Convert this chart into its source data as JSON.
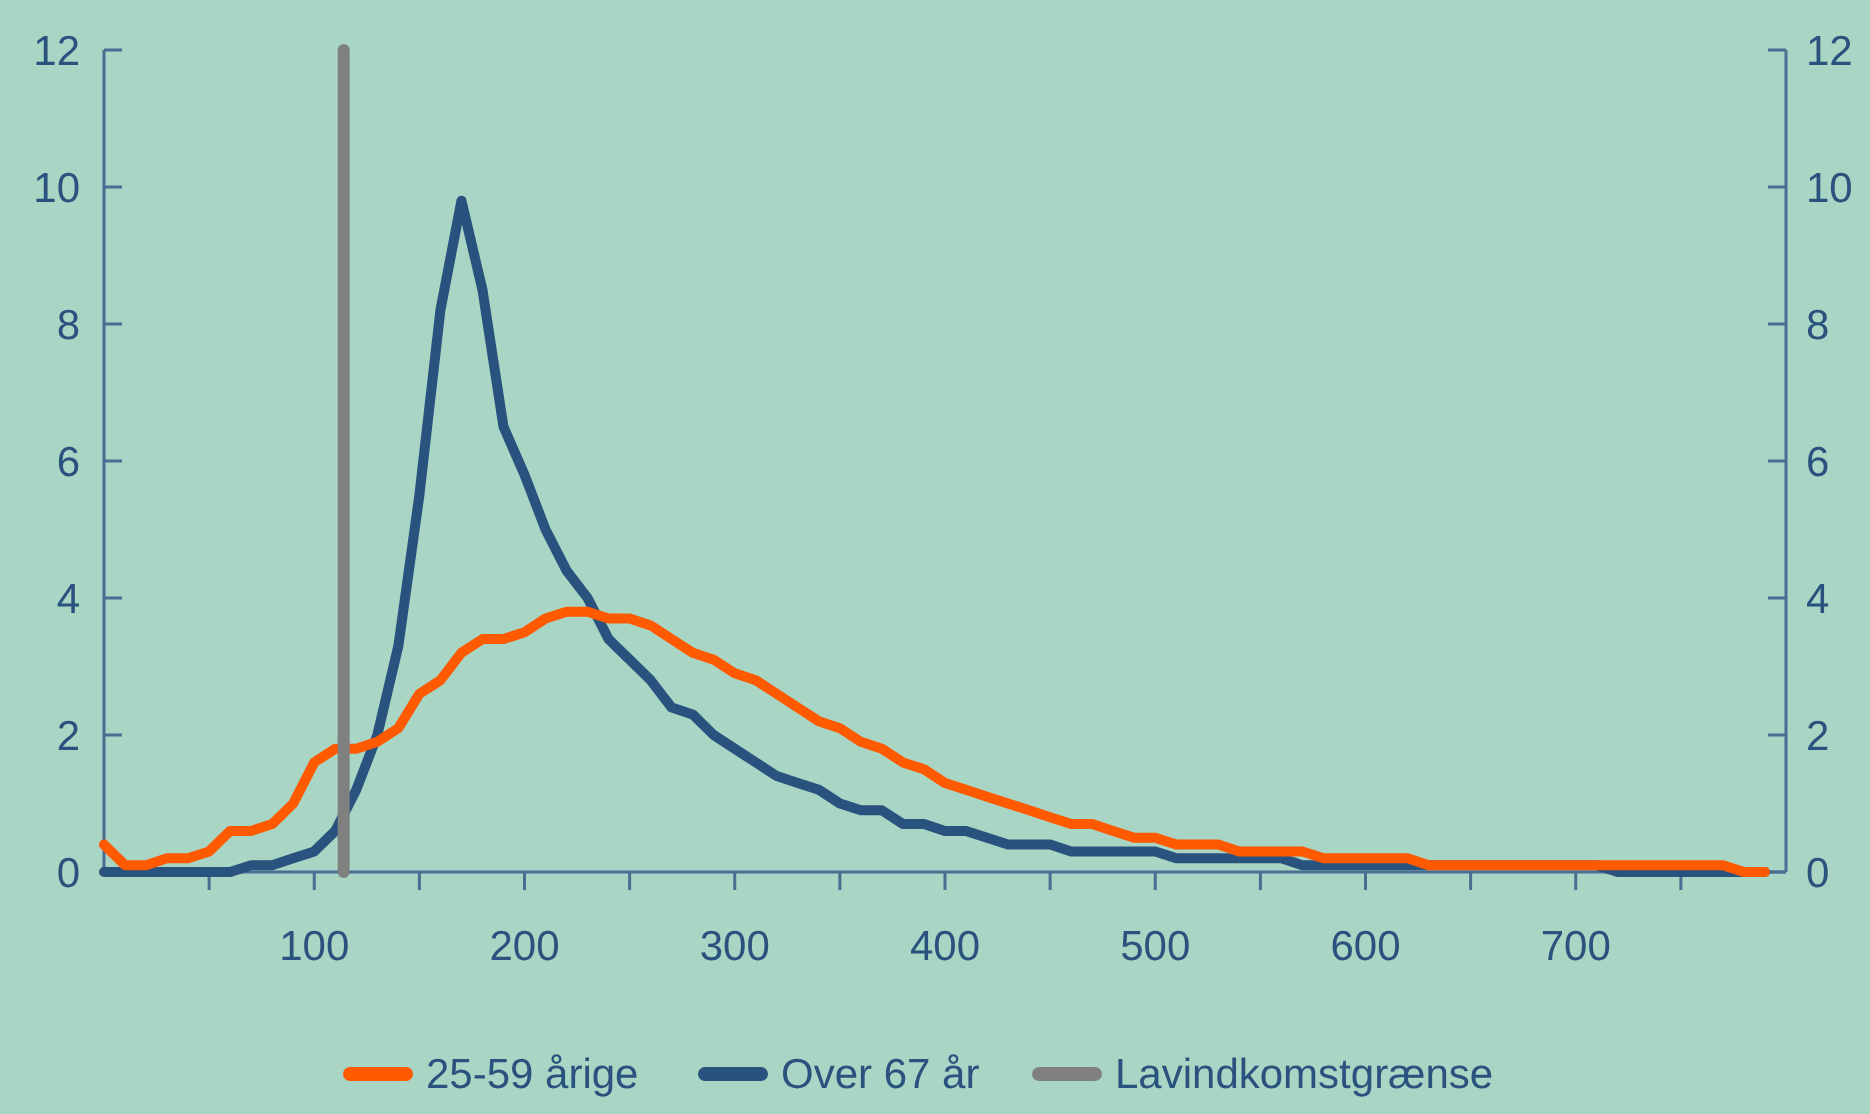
{
  "chart_data": {
    "type": "line",
    "x": [
      0,
      10,
      20,
      30,
      40,
      50,
      60,
      70,
      80,
      90,
      100,
      110,
      120,
      130,
      140,
      150,
      160,
      170,
      180,
      190,
      200,
      210,
      220,
      230,
      240,
      250,
      260,
      270,
      280,
      290,
      300,
      310,
      320,
      330,
      340,
      350,
      360,
      370,
      380,
      390,
      400,
      410,
      420,
      430,
      440,
      450,
      460,
      470,
      480,
      490,
      500,
      510,
      520,
      530,
      540,
      550,
      560,
      570,
      580,
      590,
      600,
      610,
      620,
      630,
      640,
      650,
      660,
      670,
      680,
      690,
      700,
      710,
      720,
      730,
      740,
      750,
      760,
      770,
      780,
      790
    ],
    "series": [
      {
        "name": "25-59 årige",
        "color": "#ff5a00",
        "values": [
          0.4,
          0.1,
          0.1,
          0.2,
          0.2,
          0.3,
          0.6,
          0.6,
          0.7,
          1.0,
          1.6,
          1.8,
          1.8,
          1.9,
          2.1,
          2.6,
          2.8,
          3.2,
          3.4,
          3.4,
          3.5,
          3.7,
          3.8,
          3.8,
          3.7,
          3.7,
          3.6,
          3.4,
          3.2,
          3.1,
          2.9,
          2.8,
          2.6,
          2.4,
          2.2,
          2.1,
          1.9,
          1.8,
          1.6,
          1.5,
          1.3,
          1.2,
          1.1,
          1.0,
          0.9,
          0.8,
          0.7,
          0.7,
          0.6,
          0.5,
          0.5,
          0.4,
          0.4,
          0.4,
          0.3,
          0.3,
          0.3,
          0.3,
          0.2,
          0.2,
          0.2,
          0.2,
          0.2,
          0.1,
          0.1,
          0.1,
          0.1,
          0.1,
          0.1,
          0.1,
          0.1,
          0.1,
          0.1,
          0.1,
          0.1,
          0.1,
          0.1,
          0.1,
          0.0,
          0.0
        ]
      },
      {
        "name": "Over 67 år",
        "color": "#2a527e",
        "values": [
          0,
          0,
          0,
          0,
          0,
          0,
          0,
          0.1,
          0.1,
          0.2,
          0.3,
          0.6,
          1.2,
          2.0,
          3.3,
          5.5,
          8.2,
          9.8,
          8.5,
          6.5,
          5.8,
          5.0,
          4.4,
          4.0,
          3.4,
          3.1,
          2.8,
          2.4,
          2.3,
          2.0,
          1.8,
          1.6,
          1.4,
          1.3,
          1.2,
          1.0,
          0.9,
          0.9,
          0.7,
          0.7,
          0.6,
          0.6,
          0.5,
          0.4,
          0.4,
          0.4,
          0.3,
          0.3,
          0.3,
          0.3,
          0.3,
          0.2,
          0.2,
          0.2,
          0.2,
          0.2,
          0.2,
          0.1,
          0.1,
          0.1,
          0.1,
          0.1,
          0.1,
          0.1,
          0.1,
          0.1,
          0.1,
          0.1,
          0.1,
          0.1,
          0.1,
          0.1,
          0,
          0,
          0,
          0,
          0,
          0,
          0,
          0
        ]
      }
    ],
    "ref_lines": [
      {
        "axis": "x",
        "value": 114,
        "label": "Lavindkomstgrænse",
        "color": "#808080"
      }
    ],
    "xlim": [
      0,
      800
    ],
    "xticks": [
      {
        "value": 50,
        "label": null
      },
      100,
      {
        "value": 150,
        "label": null
      },
      200,
      {
        "value": 250,
        "label": null
      },
      300,
      {
        "value": 350,
        "label": null
      },
      400,
      {
        "value": 450,
        "label": null
      },
      500,
      {
        "value": 550,
        "label": null
      },
      600,
      {
        "value": 650,
        "label": null
      },
      700,
      {
        "value": 750,
        "label": null
      }
    ],
    "ylim": [
      0,
      12
    ],
    "yticks": [
      0,
      2,
      4,
      6,
      8,
      10,
      12
    ],
    "y2lim": [
      0,
      12
    ],
    "y2ticks": [
      0,
      2,
      4,
      6,
      8,
      10,
      12
    ],
    "grid": false,
    "legend": "bottom",
    "line_style": "solid",
    "marker": "none"
  }
}
